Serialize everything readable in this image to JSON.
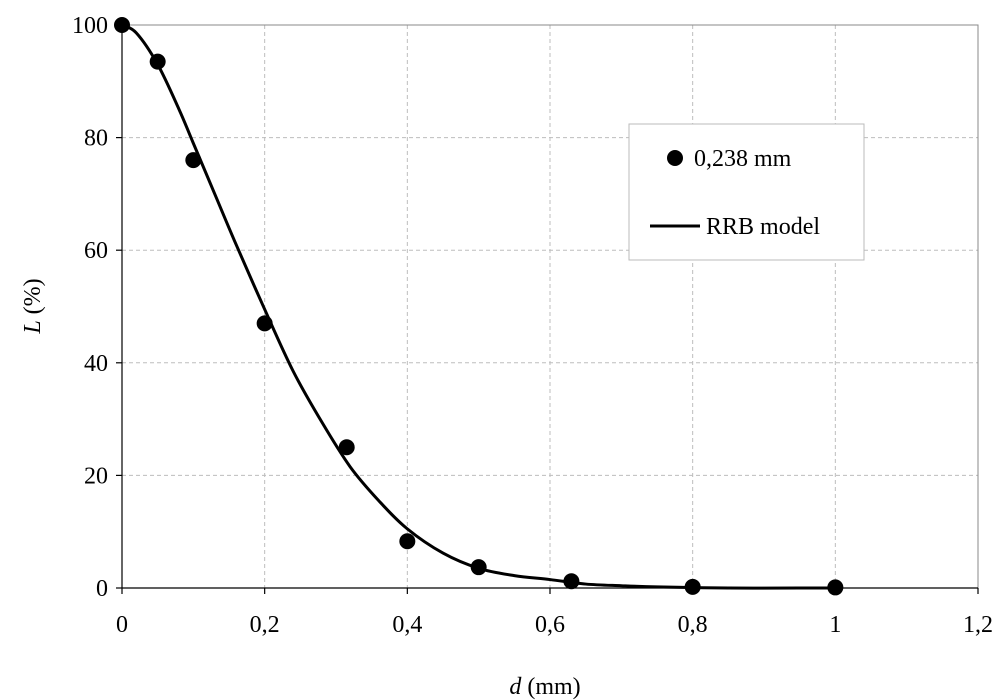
{
  "chart_data": {
    "type": "scatter",
    "xlabel": {
      "symbol": "d",
      "unit": " (mm)"
    },
    "ylabel": {
      "symbol": "L",
      "unit": " (%)"
    },
    "xlim": [
      0,
      1.2
    ],
    "ylim": [
      0,
      100
    ],
    "xticks": [
      0,
      0.2,
      0.4,
      0.6,
      0.8,
      1.0,
      1.2
    ],
    "xtick_labels": [
      "0",
      "0,2",
      "0,4",
      "0,6",
      "0,8",
      "1",
      "1,2"
    ],
    "yticks": [
      0,
      20,
      40,
      60,
      80,
      100
    ],
    "ytick_labels": [
      "0",
      "20",
      "40",
      "60",
      "80",
      "100"
    ],
    "grid": true,
    "legend_position": "upper-right",
    "series": [
      {
        "name": "0,238 mm",
        "kind": "markers",
        "color": "#000000",
        "points": [
          [
            0,
            100
          ],
          [
            0.05,
            93.5
          ],
          [
            0.1,
            76
          ],
          [
            0.2,
            47
          ],
          [
            0.315,
            25
          ],
          [
            0.4,
            8.3
          ],
          [
            0.5,
            3.7
          ],
          [
            0.63,
            1.2
          ],
          [
            0.8,
            0.2
          ],
          [
            1.0,
            0.1
          ]
        ]
      },
      {
        "name": "RRB model",
        "kind": "line",
        "color": "#000000",
        "points": [
          [
            0,
            100
          ],
          [
            0.02,
            98.6
          ],
          [
            0.05,
            93
          ],
          [
            0.08,
            85
          ],
          [
            0.1,
            79
          ],
          [
            0.13,
            70
          ],
          [
            0.16,
            61
          ],
          [
            0.2,
            49.5
          ],
          [
            0.24,
            38.5
          ],
          [
            0.28,
            29.5
          ],
          [
            0.32,
            21.5
          ],
          [
            0.36,
            15.5
          ],
          [
            0.4,
            10.5
          ],
          [
            0.45,
            6.2
          ],
          [
            0.5,
            3.5
          ],
          [
            0.55,
            2.2
          ],
          [
            0.6,
            1.5
          ],
          [
            0.65,
            0.7
          ],
          [
            0.7,
            0.4
          ],
          [
            0.75,
            0.2
          ],
          [
            0.85,
            0
          ],
          [
            0.95,
            0
          ],
          [
            1.0,
            0
          ]
        ]
      }
    ]
  }
}
